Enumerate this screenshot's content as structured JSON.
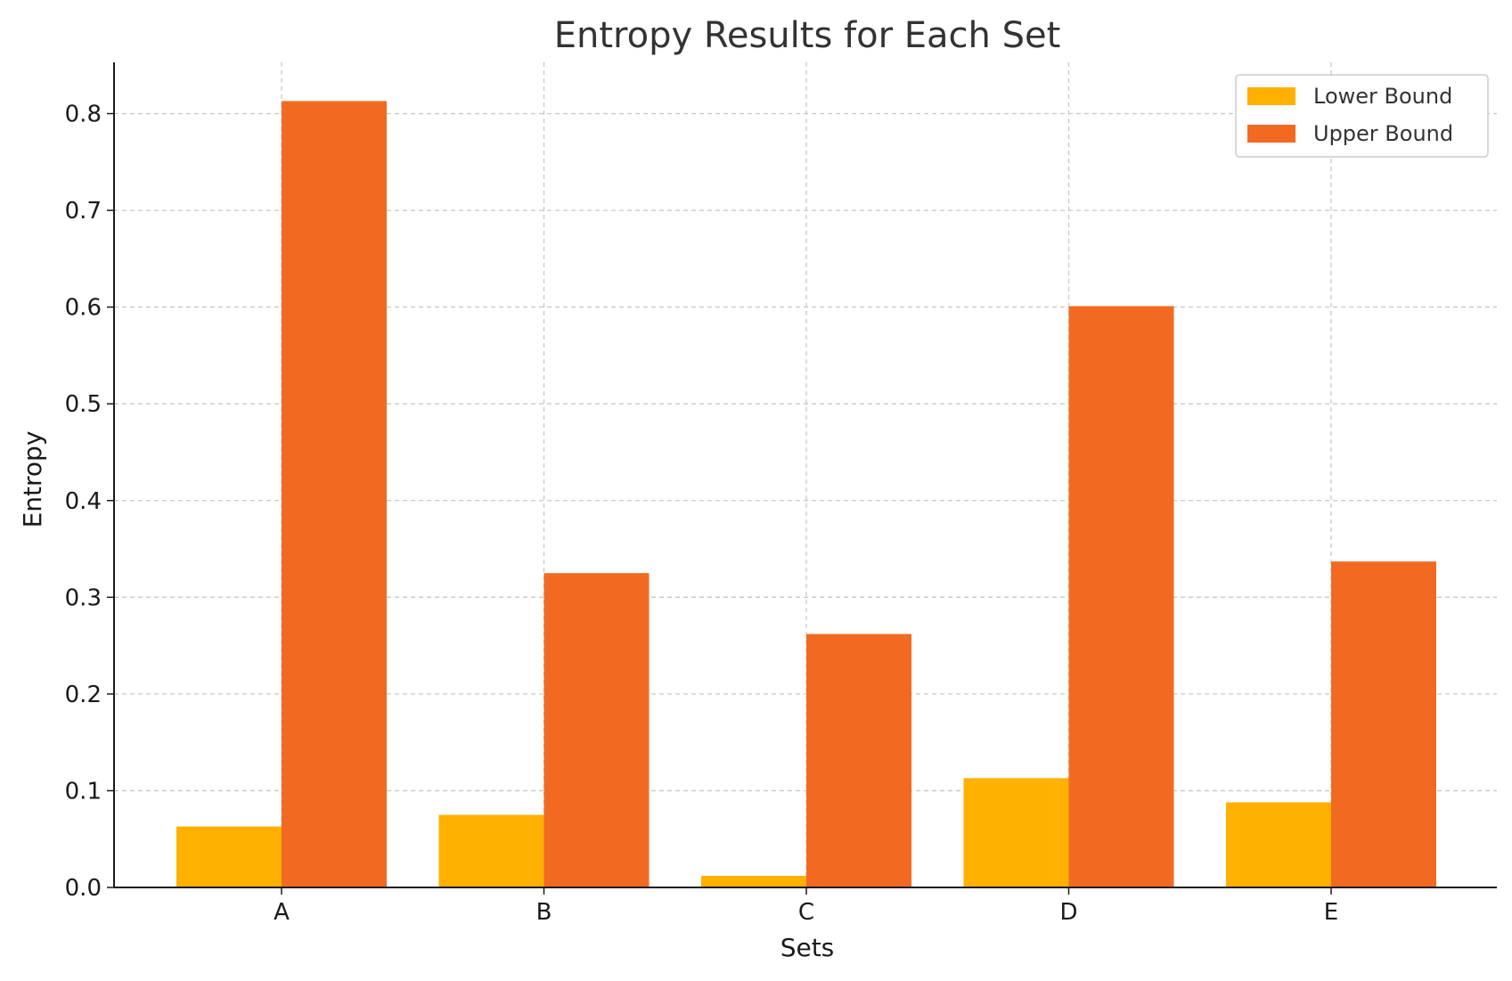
{
  "chart_data": {
    "type": "bar",
    "title": "Entropy Results for Each Set",
    "xlabel": "Sets",
    "ylabel": "Entropy",
    "categories": [
      "A",
      "B",
      "C",
      "D",
      "E"
    ],
    "series": [
      {
        "name": "Lower Bound",
        "color": "#FFB000",
        "values": [
          0.063,
          0.075,
          0.012,
          0.113,
          0.088
        ]
      },
      {
        "name": "Upper Bound",
        "color": "#F26A22",
        "values": [
          0.813,
          0.325,
          0.262,
          0.601,
          0.337
        ]
      }
    ],
    "ylim": [
      0,
      0.853
    ],
    "yticks": [
      0.0,
      0.1,
      0.2,
      0.3,
      0.4,
      0.5,
      0.6,
      0.7,
      0.8
    ],
    "ytick_labels": [
      "0.0",
      "0.1",
      "0.2",
      "0.3",
      "0.4",
      "0.5",
      "0.6",
      "0.7",
      "0.8"
    ],
    "grid": true,
    "legend_position": "top-right"
  }
}
